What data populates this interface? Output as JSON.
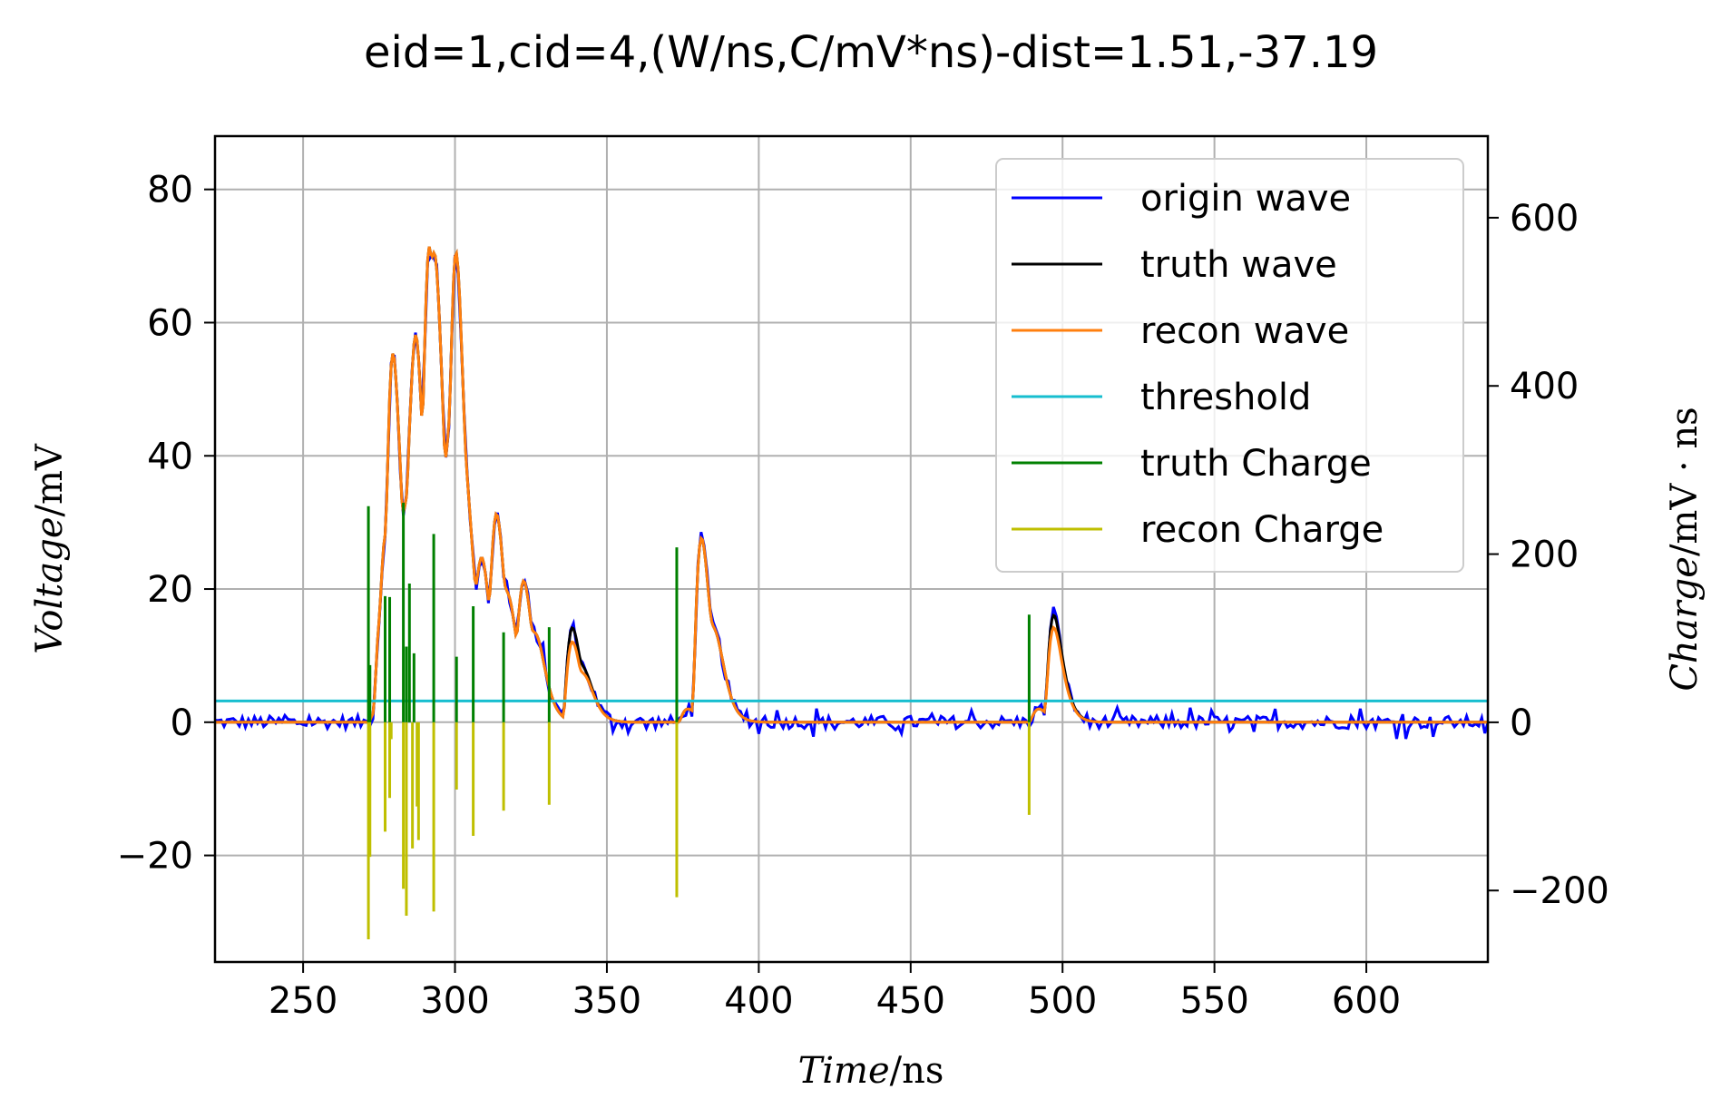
{
  "chart_data": {
    "type": "line",
    "title": "eid=1,cid=4,(W/ns,C/mV*ns)-dist=1.51,-37.19",
    "xlabel": {
      "italic": "Time",
      "unit": "/ns"
    },
    "ylabel": {
      "italic": "Voltage",
      "unit": "/mV"
    },
    "y2label": {
      "italic": "Charge",
      "unit": "/mV · ns"
    },
    "xlim": [
      221,
      640
    ],
    "ylim": [
      -36,
      88
    ],
    "y2lim": [
      -285,
      697
    ],
    "x_ticks": [
      250,
      300,
      350,
      400,
      450,
      500,
      550,
      600
    ],
    "y_ticks": [
      -20,
      0,
      20,
      40,
      60,
      80
    ],
    "y2_ticks": [
      -200,
      0,
      200,
      400,
      600
    ],
    "x_tick_labels": [
      "250",
      "300",
      "350",
      "400",
      "450",
      "500",
      "550",
      "600"
    ],
    "y_tick_labels": [
      "−20",
      "0",
      "20",
      "40",
      "60",
      "80"
    ],
    "y2_tick_labels": [
      "−200",
      "0",
      "200",
      "400",
      "600"
    ],
    "grid": true,
    "legend_position": "top-right",
    "colors": {
      "origin": "#0000ff",
      "truth": "#000000",
      "recon": "#ff7f0e",
      "threshold": "#17becf",
      "truth_charge": "#008000",
      "recon_charge": "#bfbf00"
    },
    "threshold": 3.2,
    "noise_amplitude": 1.6,
    "pulses": [
      {
        "t": 271.5,
        "a": 2.0
      },
      {
        "t": 273.0,
        "a": 16.0
      },
      {
        "t": 275.0,
        "a": 14.0
      },
      {
        "t": 277.0,
        "a": 36.0
      },
      {
        "t": 282.5,
        "a": 21.0
      },
      {
        "t": 284.0,
        "a": 26.0
      },
      {
        "t": 285.5,
        "a": 12.0
      },
      {
        "t": 289.0,
        "a": 52.0
      },
      {
        "t": 292.0,
        "a": 22.0
      },
      {
        "t": 296.5,
        "a": 30.0
      },
      {
        "t": 298.0,
        "a": 34.0
      },
      {
        "t": 303.0,
        "a": 8.0
      },
      {
        "t": 306.5,
        "a": 16.0
      },
      {
        "t": 311.0,
        "a": 24.0
      },
      {
        "t": 316.0,
        "a": 8.0
      },
      {
        "t": 320.0,
        "a": 16.0
      },
      {
        "t": 325.0,
        "a": 6.0
      },
      {
        "t": 335.5,
        "a": 14.0
      },
      {
        "t": 341.0,
        "a": 3.0
      },
      {
        "t": 373.5,
        "a": 2.0
      },
      {
        "t": 378.0,
        "a": 27.0
      },
      {
        "t": 384.0,
        "a": 6.0
      },
      {
        "t": 489.0,
        "a": 2.0
      },
      {
        "t": 494.0,
        "a": 15.5
      }
    ],
    "recon_scale": [
      1,
      1,
      1,
      1,
      1,
      1,
      1,
      1,
      1,
      1,
      1,
      1,
      1,
      1,
      1,
      1,
      1,
      0.85,
      1,
      1,
      1,
      1,
      1,
      0.88
    ],
    "series": [
      {
        "name": "truth Charge",
        "x": [
          271.5,
          272,
          277,
          278.5,
          283,
          285,
          286.5,
          284,
          293,
          300.5,
          306,
          316,
          331
        ],
        "values": [
          257,
          68,
          150,
          149,
          261,
          165,
          82,
          90,
          224,
          78,
          138,
          107,
          113
        ]
      },
      {
        "name": "recon Charge",
        "x": [
          271.5,
          272,
          277,
          278.5,
          279,
          283,
          284,
          286,
          287.5,
          288,
          293,
          300.5,
          306,
          316,
          331,
          373,
          489
        ],
        "values": [
          -258,
          -160,
          -130,
          -90,
          -20,
          -198,
          -230,
          -150,
          -100,
          -140,
          -225,
          -80,
          -135,
          -105,
          -98,
          -208,
          -110
        ]
      },
      {
        "name": "truth Charge",
        "x": [
          373,
          489
        ],
        "values": [
          208,
          128
        ]
      }
    ],
    "legend": [
      {
        "label": "origin wave",
        "color": "#0000ff"
      },
      {
        "label": "truth wave",
        "color": "#000000"
      },
      {
        "label": "recon wave",
        "color": "#ff7f0e"
      },
      {
        "label": "threshold",
        "color": "#17becf"
      },
      {
        "label": "truth Charge",
        "color": "#008000"
      },
      {
        "label": "recon Charge",
        "color": "#bfbf00"
      }
    ]
  }
}
